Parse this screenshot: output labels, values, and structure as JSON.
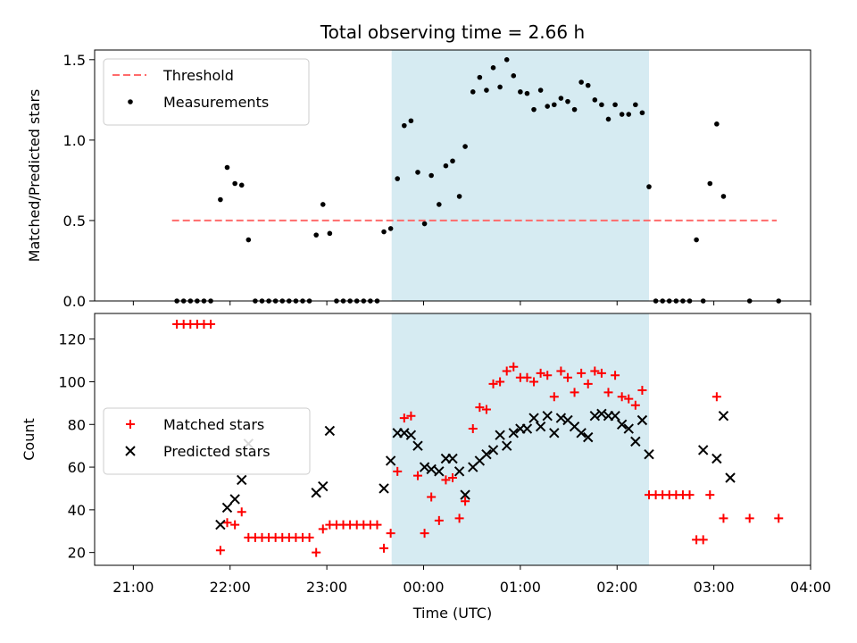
{
  "chart_data": [
    {
      "type": "scatter",
      "title": "Total observing time = 2.66 h",
      "ylabel": "Matched/Predicted stars",
      "xlim": [
        -3.4,
        4.0
      ],
      "ylim": [
        0.0,
        1.56
      ],
      "yticks": [
        0.0,
        0.5,
        1.0,
        1.5
      ],
      "ytick_labels": [
        "0.0",
        "0.5",
        "1.0",
        "1.5"
      ],
      "shaded_span": [
        -0.33,
        2.33
      ],
      "shade_color": "#add8e6",
      "legend_position": "upper left",
      "threshold": {
        "name": "Threshold",
        "value": 0.5,
        "x_range": [
          -2.6,
          3.65
        ],
        "color": "#ff6b6b",
        "style": "dashed"
      },
      "series": [
        {
          "name": "Measurements",
          "color": "#000000",
          "marker": "dot",
          "points": [
            [
              -2.55,
              0.0
            ],
            [
              -2.48,
              0.0
            ],
            [
              -2.41,
              0.0
            ],
            [
              -2.34,
              0.0
            ],
            [
              -2.27,
              0.0
            ],
            [
              -2.2,
              0.0
            ],
            [
              -2.1,
              0.63
            ],
            [
              -2.03,
              0.83
            ],
            [
              -1.95,
              0.73
            ],
            [
              -1.88,
              0.72
            ],
            [
              -1.81,
              0.38
            ],
            [
              -1.74,
              0.0
            ],
            [
              -1.67,
              0.0
            ],
            [
              -1.6,
              0.0
            ],
            [
              -1.53,
              0.0
            ],
            [
              -1.46,
              0.0
            ],
            [
              -1.39,
              0.0
            ],
            [
              -1.32,
              0.0
            ],
            [
              -1.25,
              0.0
            ],
            [
              -1.18,
              0.0
            ],
            [
              -1.11,
              0.41
            ],
            [
              -1.04,
              0.6
            ],
            [
              -0.97,
              0.42
            ],
            [
              -0.9,
              0.0
            ],
            [
              -0.83,
              0.0
            ],
            [
              -0.76,
              0.0
            ],
            [
              -0.69,
              0.0
            ],
            [
              -0.62,
              0.0
            ],
            [
              -0.55,
              0.0
            ],
            [
              -0.48,
              0.0
            ],
            [
              -0.41,
              0.43
            ],
            [
              -0.34,
              0.45
            ],
            [
              -0.27,
              0.76
            ],
            [
              -0.2,
              1.09
            ],
            [
              -0.13,
              1.12
            ],
            [
              -0.06,
              0.8
            ],
            [
              0.01,
              0.48
            ],
            [
              0.08,
              0.78
            ],
            [
              0.16,
              0.6
            ],
            [
              0.23,
              0.84
            ],
            [
              0.3,
              0.87
            ],
            [
              0.37,
              0.65
            ],
            [
              0.43,
              0.96
            ],
            [
              0.51,
              1.3
            ],
            [
              0.58,
              1.39
            ],
            [
              0.65,
              1.31
            ],
            [
              0.72,
              1.45
            ],
            [
              0.79,
              1.33
            ],
            [
              0.86,
              1.5
            ],
            [
              0.93,
              1.4
            ],
            [
              1.0,
              1.3
            ],
            [
              1.07,
              1.29
            ],
            [
              1.14,
              1.19
            ],
            [
              1.21,
              1.31
            ],
            [
              1.28,
              1.21
            ],
            [
              1.35,
              1.22
            ],
            [
              1.42,
              1.26
            ],
            [
              1.49,
              1.24
            ],
            [
              1.56,
              1.19
            ],
            [
              1.63,
              1.36
            ],
            [
              1.7,
              1.34
            ],
            [
              1.77,
              1.25
            ],
            [
              1.84,
              1.22
            ],
            [
              1.91,
              1.13
            ],
            [
              1.98,
              1.22
            ],
            [
              2.05,
              1.16
            ],
            [
              2.12,
              1.16
            ],
            [
              2.19,
              1.22
            ],
            [
              2.26,
              1.17
            ],
            [
              2.33,
              0.71
            ],
            [
              2.4,
              0.0
            ],
            [
              2.47,
              0.0
            ],
            [
              2.54,
              0.0
            ],
            [
              2.61,
              0.0
            ],
            [
              2.68,
              0.0
            ],
            [
              2.75,
              0.0
            ],
            [
              2.82,
              0.38
            ],
            [
              2.89,
              0.0
            ],
            [
              2.96,
              0.73
            ],
            [
              3.03,
              1.1
            ],
            [
              3.1,
              0.65
            ],
            [
              3.37,
              0.0
            ],
            [
              3.67,
              0.0
            ]
          ]
        }
      ]
    },
    {
      "type": "scatter",
      "xlabel": "Time (UTC)",
      "ylabel": "Count",
      "xlim": [
        -3.4,
        4.0
      ],
      "ylim": [
        14,
        132
      ],
      "yticks": [
        20,
        40,
        60,
        80,
        100,
        120
      ],
      "ytick_labels": [
        "20",
        "40",
        "60",
        "80",
        "100",
        "120"
      ],
      "xticks": [
        -3,
        -2,
        -1,
        0,
        1,
        2,
        3,
        4
      ],
      "xtick_labels": [
        "21:00",
        "22:00",
        "23:00",
        "00:00",
        "01:00",
        "02:00",
        "03:00",
        "04:00"
      ],
      "shaded_span": [
        -0.33,
        2.33
      ],
      "shade_color": "#add8e6",
      "legend_position": "center left",
      "series": [
        {
          "name": "Matched stars",
          "color": "#ff0000",
          "marker": "plus",
          "points": [
            [
              -2.55,
              127
            ],
            [
              -2.48,
              127
            ],
            [
              -2.41,
              127
            ],
            [
              -2.34,
              127
            ],
            [
              -2.27,
              127
            ],
            [
              -2.2,
              127
            ],
            [
              -2.1,
              21
            ],
            [
              -2.03,
              34
            ],
            [
              -1.95,
              33
            ],
            [
              -1.88,
              39
            ],
            [
              -1.81,
              27
            ],
            [
              -1.74,
              27
            ],
            [
              -1.67,
              27
            ],
            [
              -1.6,
              27
            ],
            [
              -1.53,
              27
            ],
            [
              -1.46,
              27
            ],
            [
              -1.39,
              27
            ],
            [
              -1.32,
              27
            ],
            [
              -1.25,
              27
            ],
            [
              -1.18,
              27
            ],
            [
              -1.11,
              20
            ],
            [
              -1.04,
              31
            ],
            [
              -0.97,
              33
            ],
            [
              -0.9,
              33
            ],
            [
              -0.83,
              33
            ],
            [
              -0.76,
              33
            ],
            [
              -0.69,
              33
            ],
            [
              -0.62,
              33
            ],
            [
              -0.55,
              33
            ],
            [
              -0.48,
              33
            ],
            [
              -0.41,
              22
            ],
            [
              -0.34,
              29
            ],
            [
              -0.27,
              58
            ],
            [
              -0.2,
              83
            ],
            [
              -0.13,
              84
            ],
            [
              -0.06,
              56
            ],
            [
              0.01,
              29
            ],
            [
              0.08,
              46
            ],
            [
              0.16,
              35
            ],
            [
              0.23,
              54
            ],
            [
              0.3,
              55
            ],
            [
              0.37,
              36
            ],
            [
              0.43,
              44
            ],
            [
              0.51,
              78
            ],
            [
              0.58,
              88
            ],
            [
              0.65,
              87
            ],
            [
              0.72,
              99
            ],
            [
              0.79,
              100
            ],
            [
              0.86,
              105
            ],
            [
              0.93,
              107
            ],
            [
              1.0,
              102
            ],
            [
              1.07,
              102
            ],
            [
              1.14,
              100
            ],
            [
              1.21,
              104
            ],
            [
              1.28,
              103
            ],
            [
              1.35,
              93
            ],
            [
              1.42,
              105
            ],
            [
              1.49,
              102
            ],
            [
              1.56,
              95
            ],
            [
              1.63,
              104
            ],
            [
              1.7,
              99
            ],
            [
              1.77,
              105
            ],
            [
              1.84,
              104
            ],
            [
              1.91,
              95
            ],
            [
              1.98,
              103
            ],
            [
              2.05,
              93
            ],
            [
              2.12,
              92
            ],
            [
              2.19,
              89
            ],
            [
              2.26,
              96
            ],
            [
              2.33,
              47
            ],
            [
              2.4,
              47
            ],
            [
              2.47,
              47
            ],
            [
              2.54,
              47
            ],
            [
              2.61,
              47
            ],
            [
              2.68,
              47
            ],
            [
              2.75,
              47
            ],
            [
              2.82,
              26
            ],
            [
              2.89,
              26
            ],
            [
              2.96,
              47
            ],
            [
              3.03,
              93
            ],
            [
              3.1,
              36
            ],
            [
              3.37,
              36
            ],
            [
              3.67,
              36
            ]
          ]
        },
        {
          "name": "Predicted stars",
          "color": "#000000",
          "marker": "x",
          "points": [
            [
              -2.1,
              33
            ],
            [
              -2.03,
              41
            ],
            [
              -1.95,
              45
            ],
            [
              -1.88,
              54
            ],
            [
              -1.81,
              71
            ],
            [
              -1.11,
              48
            ],
            [
              -1.04,
              51
            ],
            [
              -0.97,
              77
            ],
            [
              -0.41,
              50
            ],
            [
              -0.34,
              63
            ],
            [
              -0.27,
              76
            ],
            [
              -0.2,
              76
            ],
            [
              -0.13,
              75
            ],
            [
              -0.06,
              70
            ],
            [
              0.01,
              60
            ],
            [
              0.08,
              59
            ],
            [
              0.16,
              58
            ],
            [
              0.23,
              64
            ],
            [
              0.3,
              64
            ],
            [
              0.37,
              58
            ],
            [
              0.43,
              47
            ],
            [
              0.51,
              60
            ],
            [
              0.58,
              63
            ],
            [
              0.65,
              66
            ],
            [
              0.72,
              68
            ],
            [
              0.79,
              75
            ],
            [
              0.86,
              70
            ],
            [
              0.93,
              76
            ],
            [
              1.0,
              78
            ],
            [
              1.07,
              78
            ],
            [
              1.14,
              83
            ],
            [
              1.21,
              79
            ],
            [
              1.28,
              84
            ],
            [
              1.35,
              76
            ],
            [
              1.42,
              83
            ],
            [
              1.49,
              82
            ],
            [
              1.56,
              79
            ],
            [
              1.63,
              76
            ],
            [
              1.7,
              74
            ],
            [
              1.77,
              84
            ],
            [
              1.84,
              85
            ],
            [
              1.91,
              84
            ],
            [
              1.98,
              84
            ],
            [
              2.05,
              80
            ],
            [
              2.12,
              78
            ],
            [
              2.19,
              72
            ],
            [
              2.26,
              82
            ],
            [
              2.33,
              66
            ],
            [
              2.89,
              68
            ],
            [
              3.03,
              64
            ],
            [
              3.1,
              84
            ],
            [
              3.17,
              55
            ]
          ]
        }
      ]
    }
  ]
}
